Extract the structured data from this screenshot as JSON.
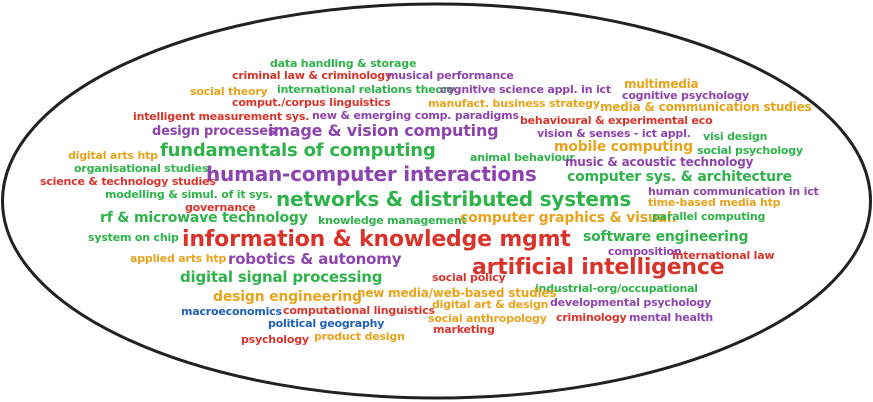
{
  "colors": {
    "background": "#ffffff",
    "outline": "#222222",
    "green": "#2eb34a",
    "purple": "#8e44ad",
    "red": "#d9342b",
    "orange": "#e8a31c",
    "blue": "#1f5fb5"
  },
  "words": [
    {
      "text": "data handling & storage",
      "color": "green",
      "weight": 1
    },
    {
      "text": "criminal law & criminology",
      "color": "red",
      "weight": 1
    },
    {
      "text": "musical performance",
      "color": "purple",
      "weight": 1
    },
    {
      "text": "multimedia",
      "color": "orange",
      "weight": 1
    },
    {
      "text": "social theory",
      "color": "orange",
      "weight": 1
    },
    {
      "text": "international relations theory",
      "color": "green",
      "weight": 1
    },
    {
      "text": "cognitive science appl. in ict",
      "color": "purple",
      "weight": 1
    },
    {
      "text": "cognitive psychology",
      "color": "purple",
      "weight": 1
    },
    {
      "text": "comput./corpus linguistics",
      "color": "red",
      "weight": 1
    },
    {
      "text": "manufact. business strategy",
      "color": "orange",
      "weight": 1
    },
    {
      "text": "media & communication studies",
      "color": "orange",
      "weight": 1
    },
    {
      "text": "intelligent measurement sys.",
      "color": "red",
      "weight": 1
    },
    {
      "text": "new & emerging comp. paradigms",
      "color": "purple",
      "weight": 1
    },
    {
      "text": "behavioural & experimental eco",
      "color": "red",
      "weight": 1
    },
    {
      "text": "design processes",
      "color": "purple",
      "weight": 2
    },
    {
      "text": "image & vision computing",
      "color": "purple",
      "weight": 3
    },
    {
      "text": "vision & senses - ict appl.",
      "color": "purple",
      "weight": 1
    },
    {
      "text": "visi design",
      "color": "green",
      "weight": 1
    },
    {
      "text": "digital arts htp",
      "color": "orange",
      "weight": 1
    },
    {
      "text": "fundamentals of computing",
      "color": "green",
      "weight": 4
    },
    {
      "text": "mobile computing",
      "color": "orange",
      "weight": 2
    },
    {
      "text": "social psychology",
      "color": "green",
      "weight": 1
    },
    {
      "text": "animal behaviour",
      "color": "green",
      "weight": 1
    },
    {
      "text": "music & acoustic technology",
      "color": "purple",
      "weight": 1
    },
    {
      "text": "organisational studies",
      "color": "green",
      "weight": 1
    },
    {
      "text": "human-computer interactions",
      "color": "purple",
      "weight": 5
    },
    {
      "text": "computer sys. & architecture",
      "color": "green",
      "weight": 2
    },
    {
      "text": "science & technology studies",
      "color": "red",
      "weight": 1
    },
    {
      "text": "human communication in ict",
      "color": "purple",
      "weight": 1
    },
    {
      "text": "modelling & simul. of it sys.",
      "color": "green",
      "weight": 1
    },
    {
      "text": "networks & distributed systems",
      "color": "green",
      "weight": 5
    },
    {
      "text": "time-based media htp",
      "color": "orange",
      "weight": 1
    },
    {
      "text": "governance",
      "color": "red",
      "weight": 1
    },
    {
      "text": "rf & microwave technology",
      "color": "green",
      "weight": 2
    },
    {
      "text": "knowledge management",
      "color": "green",
      "weight": 1
    },
    {
      "text": "computer graphics & visual.",
      "color": "orange",
      "weight": 2
    },
    {
      "text": "parallel computing",
      "color": "green",
      "weight": 1
    },
    {
      "text": "system on chip",
      "color": "green",
      "weight": 1
    },
    {
      "text": "information & knowledge mgmt",
      "color": "red",
      "weight": 5
    },
    {
      "text": "software engineering",
      "color": "green",
      "weight": 2
    },
    {
      "text": "composition",
      "color": "purple",
      "weight": 1
    },
    {
      "text": "international law",
      "color": "red",
      "weight": 1
    },
    {
      "text": "applied arts htp",
      "color": "orange",
      "weight": 1
    },
    {
      "text": "robotics & autonomy",
      "color": "purple",
      "weight": 3
    },
    {
      "text": "artificial intelligence",
      "color": "red",
      "weight": 5
    },
    {
      "text": "digital signal processing",
      "color": "green",
      "weight": 2
    },
    {
      "text": "social policy",
      "color": "red",
      "weight": 1
    },
    {
      "text": "industrial-org/occupational",
      "color": "green",
      "weight": 1
    },
    {
      "text": "design engineering",
      "color": "orange",
      "weight": 2
    },
    {
      "text": "new media/web-based studies",
      "color": "orange",
      "weight": 1
    },
    {
      "text": "digital art & design",
      "color": "orange",
      "weight": 1
    },
    {
      "text": "developmental psychology",
      "color": "purple",
      "weight": 1
    },
    {
      "text": "macroeconomics",
      "color": "blue",
      "weight": 1
    },
    {
      "text": "computational linguistics",
      "color": "red",
      "weight": 1
    },
    {
      "text": "social anthropology",
      "color": "orange",
      "weight": 1
    },
    {
      "text": "criminology",
      "color": "red",
      "weight": 1
    },
    {
      "text": "mental health",
      "color": "purple",
      "weight": 1
    },
    {
      "text": "political geography",
      "color": "blue",
      "weight": 1
    },
    {
      "text": "marketing",
      "color": "red",
      "weight": 1
    },
    {
      "text": "psychology",
      "color": "red",
      "weight": 1
    },
    {
      "text": "product design",
      "color": "orange",
      "weight": 1
    }
  ]
}
